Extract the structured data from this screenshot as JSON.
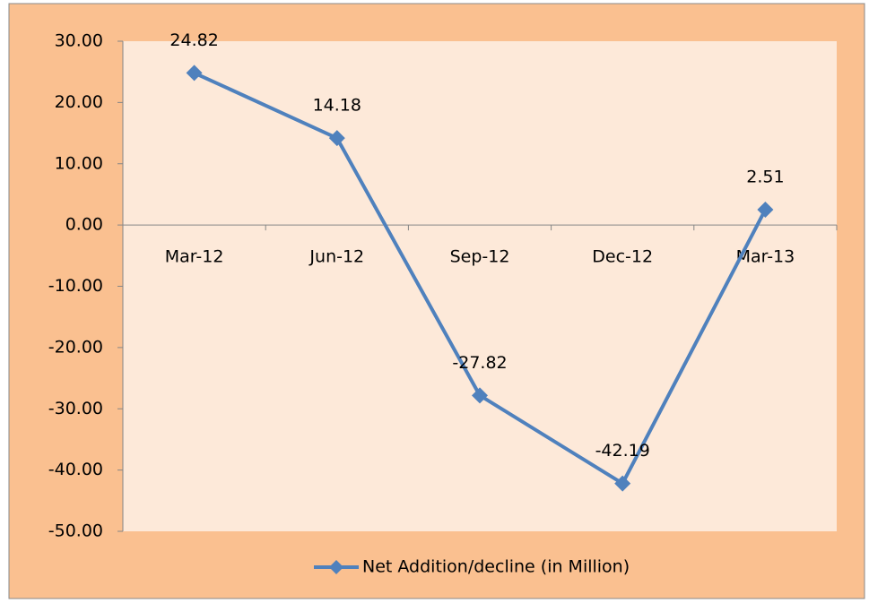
{
  "chart_data": {
    "type": "line",
    "categories": [
      "Mar-12",
      "Jun-12",
      "Sep-12",
      "Dec-12",
      "Mar-13"
    ],
    "series": [
      {
        "name": "Net Addition/decline (in Million)",
        "color": "#4f81bd",
        "values": [
          24.82,
          14.18,
          -27.82,
          -42.19,
          2.51
        ]
      }
    ],
    "ylim": [
      -50,
      30
    ],
    "yticks": [
      {
        "value": -50,
        "label": "-50.00"
      },
      {
        "value": -40,
        "label": "-40.00"
      },
      {
        "value": -30,
        "label": "-30.00"
      },
      {
        "value": -20,
        "label": "-20.00"
      },
      {
        "value": -10,
        "label": "-10.00"
      },
      {
        "value": 0,
        "label": "0.00"
      },
      {
        "value": 10,
        "label": "10.00"
      },
      {
        "value": 20,
        "label": "20.00"
      },
      {
        "value": 30,
        "label": "30.00"
      }
    ],
    "legend": "bottom"
  }
}
